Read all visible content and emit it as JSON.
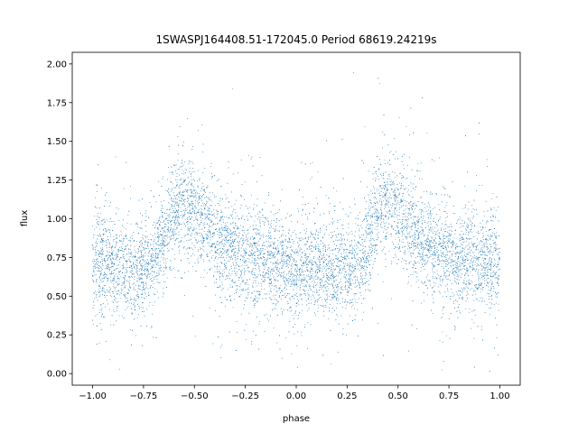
{
  "chart_data": {
    "type": "scatter",
    "title": "1SWASPJ164408.51-172045.0 Period 68619.24219s",
    "xlabel": "phase",
    "ylabel": "flux",
    "xlim": [
      -1.1,
      1.1
    ],
    "ylim": [
      -0.075,
      2.075
    ],
    "xticks": [
      -1.0,
      -0.75,
      -0.5,
      -0.25,
      0.0,
      0.25,
      0.5,
      0.75,
      1.0
    ],
    "xtick_labels": [
      "−1.00",
      "−0.75",
      "−0.50",
      "−0.25",
      "0.00",
      "0.25",
      "0.50",
      "0.75",
      "1.00"
    ],
    "yticks": [
      0.0,
      0.25,
      0.5,
      0.75,
      1.0,
      1.25,
      1.5,
      1.75,
      2.0
    ],
    "ytick_labels": [
      "0.00",
      "0.25",
      "0.50",
      "0.75",
      "1.00",
      "1.25",
      "1.50",
      "1.75",
      "2.00"
    ],
    "grid": false,
    "legend": false,
    "marker_color": "#1f77b4",
    "series": [
      {
        "profile_phase": [
          -1.0,
          -0.9,
          -0.8,
          -0.7,
          -0.65,
          -0.6,
          -0.55,
          -0.5,
          -0.45,
          -0.4,
          -0.35,
          -0.3,
          -0.2,
          -0.1,
          0.0,
          0.1,
          0.2,
          0.3,
          0.35,
          0.4,
          0.45,
          0.5,
          0.55,
          0.6,
          0.65,
          0.7,
          0.8,
          0.9,
          1.0
        ],
        "profile_flux": [
          0.72,
          0.7,
          0.67,
          0.72,
          0.88,
          1.08,
          1.1,
          1.05,
          0.97,
          0.9,
          0.82,
          0.78,
          0.74,
          0.7,
          0.68,
          0.68,
          0.68,
          0.7,
          0.85,
          1.05,
          1.1,
          1.05,
          0.97,
          0.9,
          0.82,
          0.78,
          0.74,
          0.72,
          0.72
        ],
        "scatter_sigma": 0.15,
        "point_count": 9000
      }
    ]
  }
}
